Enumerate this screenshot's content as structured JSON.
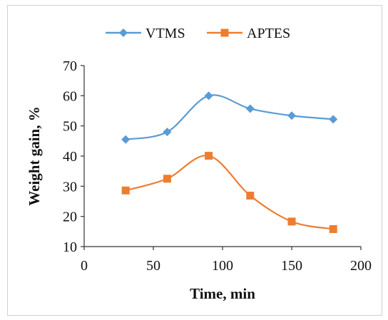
{
  "chart_data": {
    "type": "line",
    "title": "",
    "xlabel": "Time, min",
    "ylabel": "Weight gain, %",
    "xlim": [
      0,
      200
    ],
    "ylim": [
      10,
      70
    ],
    "xticks": [
      0,
      50,
      100,
      150,
      200
    ],
    "yticks": [
      10,
      20,
      30,
      40,
      50,
      60,
      70
    ],
    "grid": false,
    "legend_position": "top",
    "x": [
      30,
      60,
      90,
      120,
      150,
      180
    ],
    "series": [
      {
        "name": "VTMS",
        "values": [
          45.5,
          48,
          60,
          55.7,
          53.4,
          52.2
        ],
        "color": "#5B9BD5",
        "marker": "diamond"
      },
      {
        "name": "APTES",
        "values": [
          28.6,
          32.5,
          40.1,
          26.9,
          18.3,
          15.8
        ],
        "color": "#ED7D31",
        "marker": "square"
      }
    ]
  }
}
